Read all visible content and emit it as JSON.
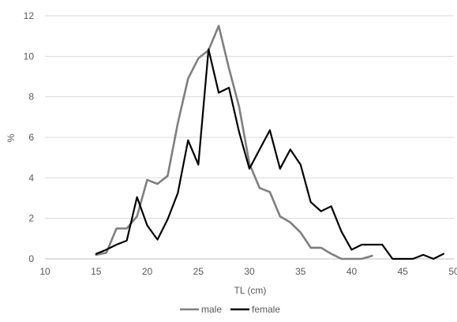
{
  "chart_data": {
    "type": "line",
    "xlabel": "TL (cm)",
    "ylabel": "%",
    "xlim": [
      10,
      50
    ],
    "ylim": [
      0,
      12
    ],
    "x_ticks": [
      "10",
      "15",
      "20",
      "25",
      "30",
      "35",
      "40",
      "45",
      "50"
    ],
    "y_ticks": [
      "0",
      "2",
      "4",
      "6",
      "8",
      "10",
      "12"
    ],
    "grid": "horizontal",
    "legend_position": "bottom",
    "series": [
      {
        "name": "male",
        "color": "#7f7f7f",
        "x": [
          15,
          16,
          17,
          18,
          19,
          20,
          21,
          22,
          23,
          24,
          25,
          26,
          27,
          28,
          29,
          30,
          31,
          32,
          33,
          34,
          35,
          36,
          37,
          38,
          39,
          40,
          41,
          42
        ],
        "y": [
          0.2,
          0.3,
          1.5,
          1.5,
          2.1,
          3.9,
          3.7,
          4.1,
          6.7,
          8.9,
          9.9,
          10.3,
          11.5,
          9.4,
          7.5,
          4.7,
          3.5,
          3.3,
          2.1,
          1.8,
          1.3,
          0.55,
          0.55,
          0.25,
          0,
          0,
          0,
          0.15
        ]
      },
      {
        "name": "female",
        "color": "#000000",
        "x": [
          15,
          16,
          17,
          18,
          19,
          20,
          21,
          22,
          23,
          24,
          25,
          26,
          27,
          28,
          29,
          30,
          31,
          32,
          33,
          34,
          35,
          36,
          37,
          38,
          39,
          40,
          41,
          42,
          43,
          44,
          45,
          46,
          47,
          48,
          49
        ],
        "y": [
          0.25,
          0.45,
          0.7,
          0.9,
          3.05,
          1.65,
          0.95,
          1.95,
          3.25,
          5.85,
          4.65,
          10.35,
          8.2,
          8.45,
          6.25,
          4.45,
          5.4,
          6.35,
          4.45,
          5.4,
          4.65,
          2.8,
          2.35,
          2.6,
          1.35,
          0.45,
          0.7,
          0.7,
          0.7,
          0,
          0,
          0,
          0.2,
          0,
          0.25
        ]
      }
    ]
  }
}
